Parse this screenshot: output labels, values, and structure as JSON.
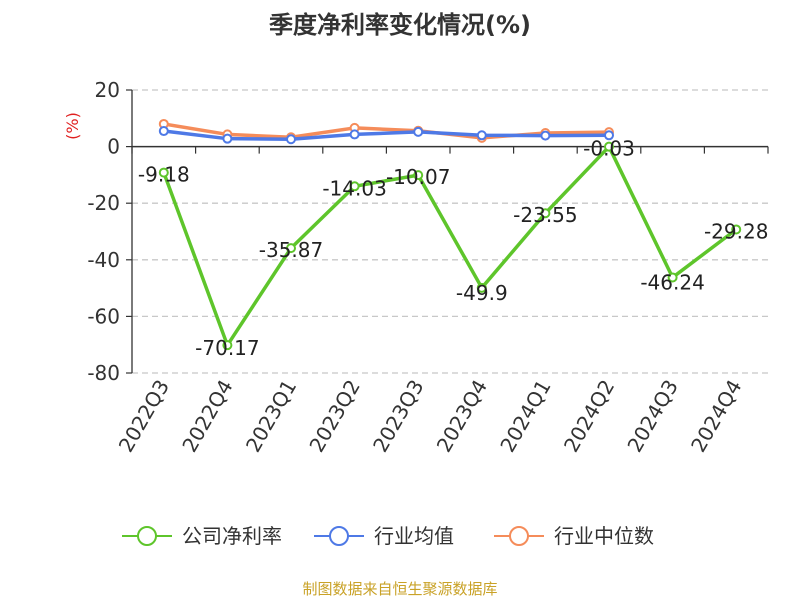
{
  "chart_data": {
    "type": "line",
    "title": "季度净利率变化情况(%)",
    "ylabel": "(%)",
    "xlabel": "",
    "categories": [
      "2022Q3",
      "2022Q4",
      "2023Q1",
      "2023Q2",
      "2023Q3",
      "2023Q4",
      "2024Q1",
      "2024Q2",
      "2024Q3",
      "2024Q4"
    ],
    "ylim": [
      -80,
      20
    ],
    "yticks": [
      "20",
      "0",
      "-20",
      "-40",
      "-60",
      "-80"
    ],
    "grid": true,
    "series": [
      {
        "name": "公司净利率",
        "color": "#5ec52b",
        "values": [
          -9.18,
          -70.17,
          -35.87,
          -14.03,
          -10.07,
          -49.9,
          -23.55,
          -0.03,
          -46.24,
          -29.28
        ],
        "labels": [
          "-9.18",
          "-70.17",
          "-35.87",
          "-14.03",
          "-10.07",
          "-49.9",
          "-23.55",
          "-0.03",
          "-46.24",
          "-29.28"
        ]
      },
      {
        "name": "行业均值",
        "color": "#4e79e6",
        "values": [
          5.5,
          2.8,
          2.6,
          4.3,
          5.2,
          4.0,
          3.9,
          4.0,
          null,
          null
        ]
      },
      {
        "name": "行业中位数",
        "color": "#f58c5a",
        "values": [
          8.0,
          4.3,
          3.3,
          6.6,
          5.6,
          3.1,
          4.8,
          5.1,
          null,
          null
        ]
      }
    ],
    "legend_position": "bottom",
    "source": "制图数据来自恒生聚源数据库"
  }
}
